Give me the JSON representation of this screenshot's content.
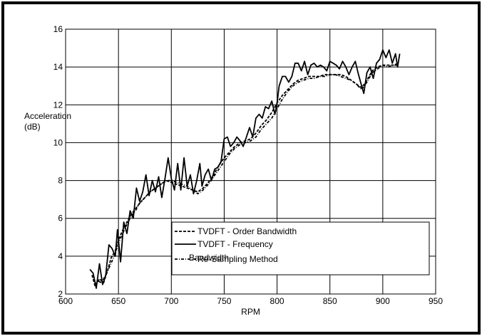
{
  "chart_data": {
    "type": "line",
    "title": "",
    "xlabel": "RPM",
    "ylabel_line1": "Acceleration",
    "ylabel_line2": "(dB)",
    "xlim": [
      600,
      950
    ],
    "ylim": [
      2,
      16
    ],
    "x_ticks": [
      600,
      650,
      700,
      750,
      800,
      850,
      900,
      950
    ],
    "y_ticks": [
      2,
      4,
      6,
      8,
      10,
      12,
      14,
      16
    ],
    "grid": true,
    "legend_position": "lower-right",
    "legend_overlap_text": "Bandwidth",
    "series": [
      {
        "name": "TVDFT - Order Bandwidth",
        "style": "dashed",
        "points": [
          [
            625,
            3.0
          ],
          [
            628,
            2.4
          ],
          [
            632,
            2.8
          ],
          [
            636,
            2.6
          ],
          [
            640,
            3.3
          ],
          [
            643,
            3.9
          ],
          [
            647,
            4.3
          ],
          [
            651,
            5.0
          ],
          [
            655,
            5.5
          ],
          [
            658,
            5.8
          ],
          [
            662,
            6.2
          ],
          [
            666,
            6.5
          ],
          [
            670,
            6.8
          ],
          [
            675,
            7.1
          ],
          [
            680,
            7.4
          ],
          [
            685,
            7.6
          ],
          [
            690,
            7.8
          ],
          [
            695,
            8.0
          ],
          [
            700,
            7.9
          ],
          [
            705,
            7.8
          ],
          [
            710,
            7.7
          ],
          [
            715,
            7.6
          ],
          [
            720,
            7.5
          ],
          [
            725,
            7.4
          ],
          [
            730,
            7.6
          ],
          [
            735,
            7.9
          ],
          [
            740,
            8.3
          ],
          [
            745,
            8.8
          ],
          [
            750,
            9.2
          ],
          [
            755,
            9.5
          ],
          [
            760,
            9.8
          ],
          [
            765,
            10.0
          ],
          [
            770,
            10.1
          ],
          [
            775,
            10.2
          ],
          [
            780,
            10.5
          ],
          [
            785,
            10.9
          ],
          [
            790,
            11.2
          ],
          [
            795,
            11.6
          ],
          [
            800,
            12.1
          ],
          [
            805,
            12.5
          ],
          [
            810,
            12.8
          ],
          [
            815,
            13.1
          ],
          [
            820,
            13.3
          ],
          [
            825,
            13.4
          ],
          [
            830,
            13.5
          ],
          [
            835,
            13.5
          ],
          [
            840,
            13.5
          ],
          [
            845,
            13.6
          ],
          [
            850,
            13.6
          ],
          [
            855,
            13.6
          ],
          [
            860,
            13.6
          ],
          [
            865,
            13.5
          ],
          [
            870,
            13.3
          ],
          [
            875,
            13.1
          ],
          [
            880,
            12.9
          ],
          [
            885,
            13.3
          ],
          [
            890,
            13.8
          ],
          [
            895,
            14.0
          ],
          [
            900,
            14.1
          ],
          [
            905,
            14.1
          ],
          [
            910,
            14.1
          ],
          [
            915,
            14.2
          ]
        ]
      },
      {
        "name": "TVDFT - Frequency",
        "style": "solid",
        "points": [
          [
            623,
            3.3
          ],
          [
            626,
            3.1
          ],
          [
            629,
            2.3
          ],
          [
            632,
            3.6
          ],
          [
            635,
            2.5
          ],
          [
            638,
            3.0
          ],
          [
            641,
            4.6
          ],
          [
            644,
            4.4
          ],
          [
            647,
            4.0
          ],
          [
            649,
            5.4
          ],
          [
            652,
            3.7
          ],
          [
            655,
            5.8
          ],
          [
            658,
            5.2
          ],
          [
            661,
            6.4
          ],
          [
            664,
            6.0
          ],
          [
            667,
            7.6
          ],
          [
            670,
            6.9
          ],
          [
            673,
            7.4
          ],
          [
            676,
            8.3
          ],
          [
            679,
            7.2
          ],
          [
            682,
            8.0
          ],
          [
            685,
            7.4
          ],
          [
            688,
            8.2
          ],
          [
            691,
            7.1
          ],
          [
            694,
            8.1
          ],
          [
            697,
            9.2
          ],
          [
            700,
            8.1
          ],
          [
            703,
            7.5
          ],
          [
            706,
            8.9
          ],
          [
            709,
            7.5
          ],
          [
            712,
            9.2
          ],
          [
            715,
            7.7
          ],
          [
            718,
            8.3
          ],
          [
            721,
            7.3
          ],
          [
            724,
            8.0
          ],
          [
            727,
            8.9
          ],
          [
            729,
            7.7
          ],
          [
            732,
            8.3
          ],
          [
            735,
            8.6
          ],
          [
            738,
            8.0
          ],
          [
            741,
            8.6
          ],
          [
            744,
            8.7
          ],
          [
            747,
            9.0
          ],
          [
            750,
            10.2
          ],
          [
            753,
            10.3
          ],
          [
            756,
            9.8
          ],
          [
            759,
            10.0
          ],
          [
            762,
            10.3
          ],
          [
            765,
            10.1
          ],
          [
            768,
            9.8
          ],
          [
            771,
            10.3
          ],
          [
            774,
            10.8
          ],
          [
            777,
            10.3
          ],
          [
            780,
            11.3
          ],
          [
            783,
            11.5
          ],
          [
            786,
            11.3
          ],
          [
            789,
            11.9
          ],
          [
            792,
            11.8
          ],
          [
            795,
            12.2
          ],
          [
            798,
            11.5
          ],
          [
            800,
            12.1
          ],
          [
            802,
            13.0
          ],
          [
            805,
            13.5
          ],
          [
            808,
            13.5
          ],
          [
            811,
            13.2
          ],
          [
            814,
            13.5
          ],
          [
            817,
            14.2
          ],
          [
            820,
            14.2
          ],
          [
            823,
            13.8
          ],
          [
            826,
            14.3
          ],
          [
            829,
            13.6
          ],
          [
            832,
            14.1
          ],
          [
            835,
            14.2
          ],
          [
            838,
            14.0
          ],
          [
            841,
            14.1
          ],
          [
            844,
            14.0
          ],
          [
            847,
            13.8
          ],
          [
            850,
            14.3
          ],
          [
            853,
            14.2
          ],
          [
            856,
            14.1
          ],
          [
            859,
            13.9
          ],
          [
            862,
            14.3
          ],
          [
            865,
            14.0
          ],
          [
            868,
            13.6
          ],
          [
            871,
            14.0
          ],
          [
            874,
            14.3
          ],
          [
            877,
            13.6
          ],
          [
            880,
            13.0
          ],
          [
            882,
            12.6
          ],
          [
            885,
            13.7
          ],
          [
            888,
            14.0
          ],
          [
            891,
            13.4
          ],
          [
            894,
            14.2
          ],
          [
            897,
            14.4
          ],
          [
            900,
            14.9
          ],
          [
            903,
            14.5
          ],
          [
            906,
            14.9
          ],
          [
            909,
            14.2
          ],
          [
            912,
            14.7
          ],
          [
            914,
            14.0
          ],
          [
            916,
            14.7
          ]
        ]
      },
      {
        "name": "Re-Sampling Method",
        "style": "dashdot",
        "points": [
          [
            627,
            2.5
          ],
          [
            630,
            2.7
          ],
          [
            634,
            2.6
          ],
          [
            638,
            3.0
          ],
          [
            642,
            3.5
          ],
          [
            646,
            4.0
          ],
          [
            650,
            4.7
          ],
          [
            654,
            5.2
          ],
          [
            658,
            5.7
          ],
          [
            662,
            6.1
          ],
          [
            666,
            6.4
          ],
          [
            670,
            6.8
          ],
          [
            675,
            7.1
          ],
          [
            680,
            7.4
          ],
          [
            685,
            7.6
          ],
          [
            690,
            7.8
          ],
          [
            695,
            8.0
          ],
          [
            700,
            8.0
          ],
          [
            705,
            7.9
          ],
          [
            710,
            7.8
          ],
          [
            715,
            7.7
          ],
          [
            720,
            7.5
          ],
          [
            725,
            7.3
          ],
          [
            730,
            7.5
          ],
          [
            735,
            7.8
          ],
          [
            740,
            8.2
          ],
          [
            745,
            8.6
          ],
          [
            750,
            9.0
          ],
          [
            755,
            9.4
          ],
          [
            760,
            9.7
          ],
          [
            765,
            9.9
          ],
          [
            770,
            10.0
          ],
          [
            775,
            10.1
          ],
          [
            780,
            10.3
          ],
          [
            785,
            10.7
          ],
          [
            790,
            11.0
          ],
          [
            795,
            11.3
          ],
          [
            800,
            11.8
          ],
          [
            805,
            12.3
          ],
          [
            810,
            12.7
          ],
          [
            815,
            13.0
          ],
          [
            820,
            13.2
          ],
          [
            825,
            13.3
          ],
          [
            830,
            13.4
          ],
          [
            835,
            13.4
          ],
          [
            840,
            13.5
          ],
          [
            845,
            13.5
          ],
          [
            850,
            13.6
          ],
          [
            855,
            13.6
          ],
          [
            860,
            13.5
          ],
          [
            865,
            13.4
          ],
          [
            870,
            13.3
          ],
          [
            875,
            13.1
          ],
          [
            880,
            12.8
          ],
          [
            885,
            13.2
          ],
          [
            890,
            13.7
          ],
          [
            895,
            13.9
          ],
          [
            900,
            14.1
          ],
          [
            905,
            14.0
          ],
          [
            910,
            14.1
          ],
          [
            915,
            14.1
          ]
        ]
      }
    ]
  }
}
